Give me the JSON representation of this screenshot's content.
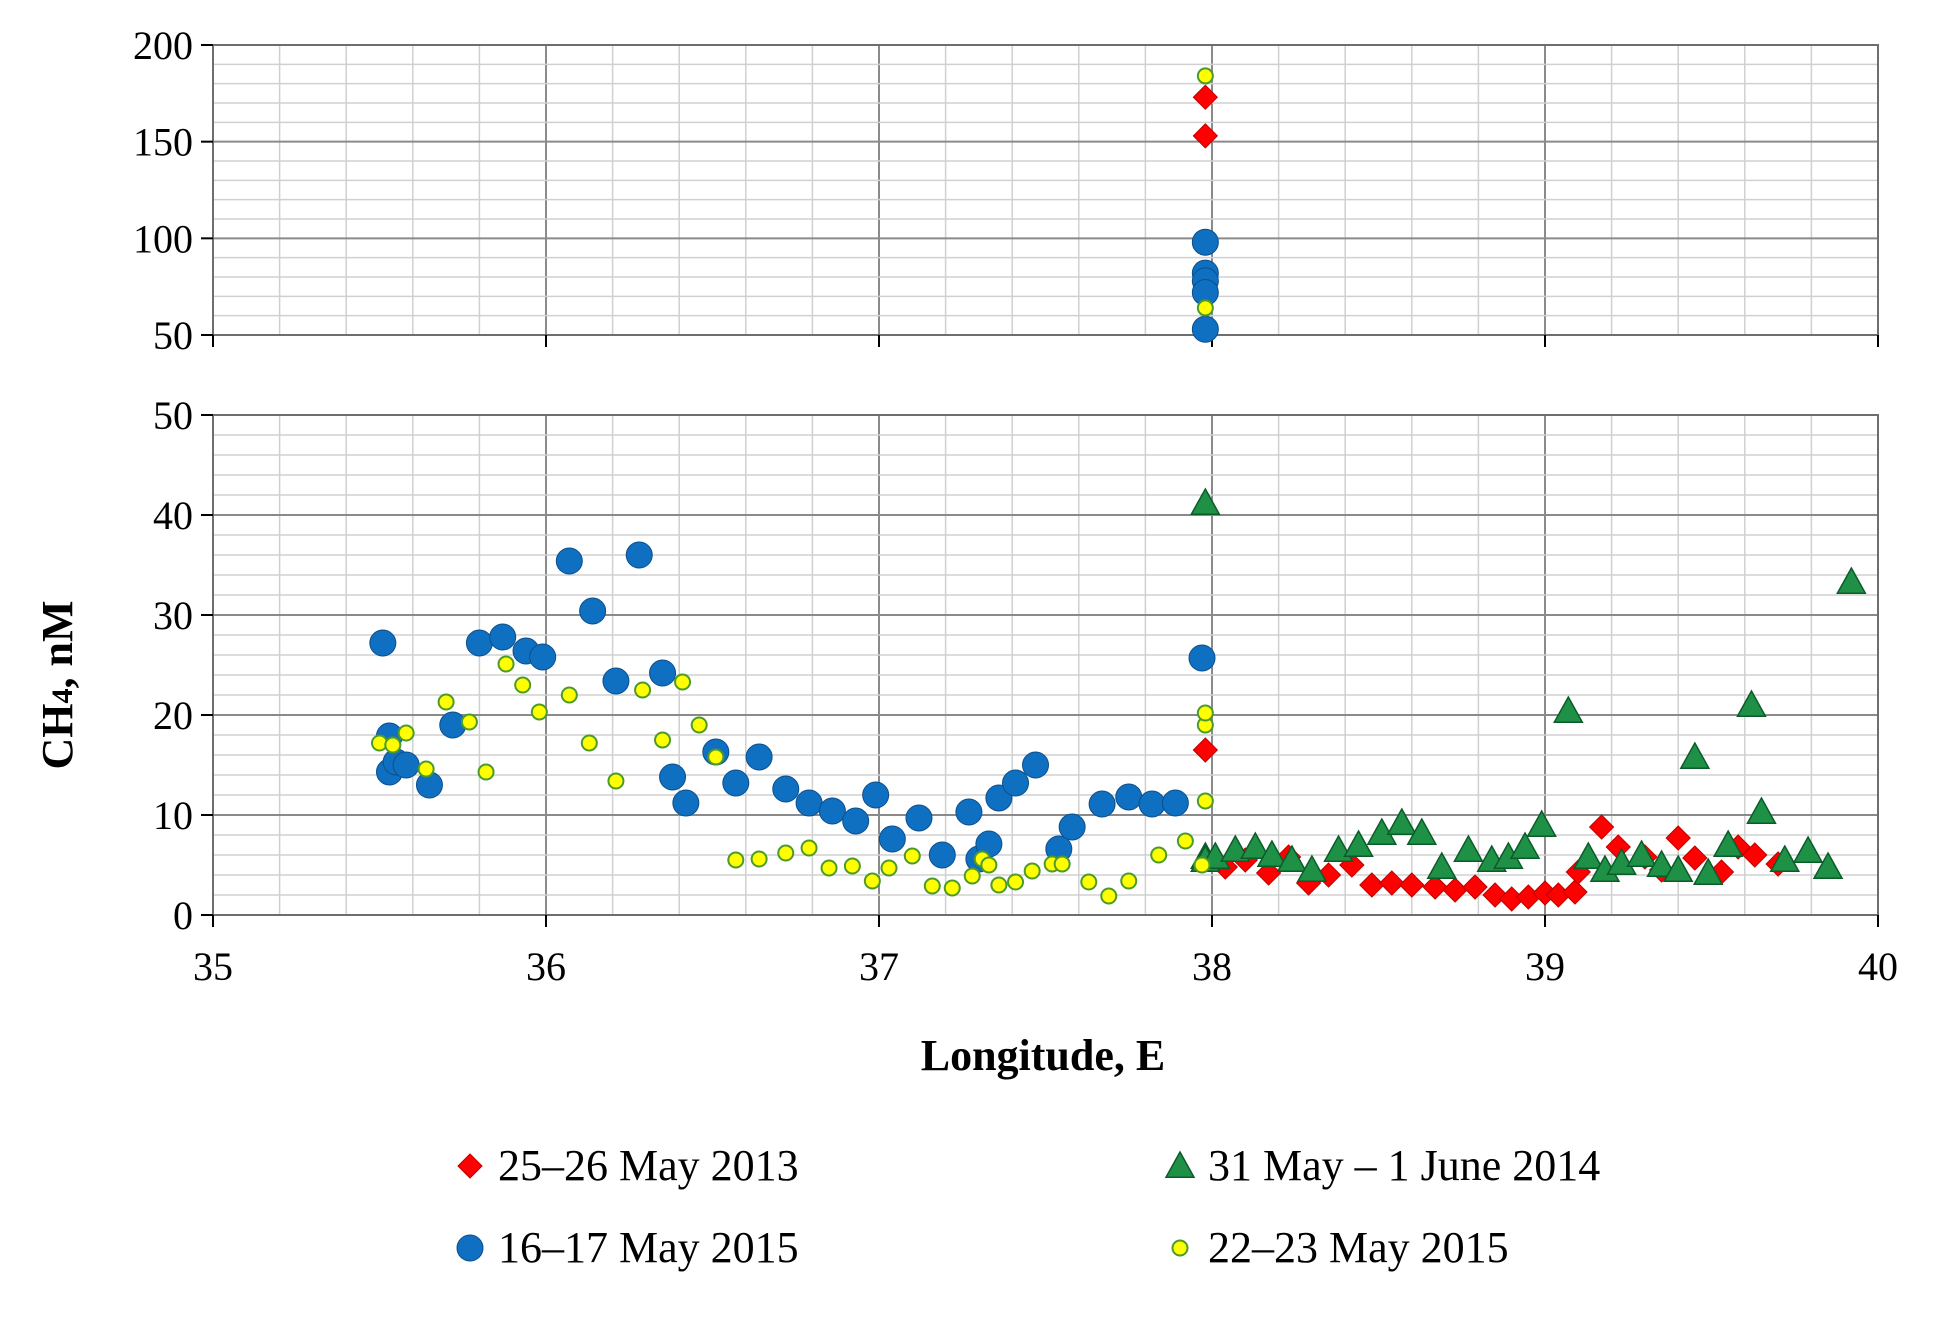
{
  "chart_data": {
    "type": "scatter",
    "title": "",
    "xlabel": "Longitude, E",
    "ylabel": "CH4, nM",
    "xlim": [
      35,
      40
    ],
    "x_ticks": [
      "35",
      "36",
      "37",
      "38",
      "39",
      "40"
    ],
    "broken_y_axis": true,
    "panels": [
      {
        "name": "upper",
        "ylim": [
          50,
          200
        ],
        "y_ticks": [
          "50",
          "100",
          "150",
          "200"
        ]
      },
      {
        "name": "lower",
        "ylim": [
          0,
          50
        ],
        "y_ticks": [
          "0",
          "10",
          "20",
          "30",
          "40",
          "50"
        ]
      }
    ],
    "grid": true,
    "legend_position": "bottom",
    "series": [
      {
        "name": "25–26 May 2013",
        "marker": "diamond",
        "color": "#ff0000",
        "x": [
          37.98,
          37.98,
          37.98,
          38.04,
          38.1,
          38.17,
          38.23,
          38.29,
          38.35,
          38.42,
          38.48,
          38.54,
          38.6,
          38.67,
          38.73,
          38.79,
          38.85,
          38.9,
          38.95,
          39.0,
          39.04,
          39.09,
          39.1,
          39.17,
          39.22,
          39.3,
          39.35,
          39.4,
          39.45,
          39.53,
          39.58,
          39.63,
          39.7
        ],
        "y": [
          173,
          153,
          16.5,
          4.8,
          5.5,
          4.2,
          5.8,
          3.2,
          4.0,
          5.0,
          3.0,
          3.2,
          3.0,
          2.8,
          2.5,
          2.8,
          2.0,
          1.6,
          1.8,
          2.2,
          2.0,
          2.3,
          4.3,
          8.8,
          6.8,
          5.8,
          4.5,
          7.7,
          5.7,
          4.3,
          6.8,
          6.0,
          5.1
        ]
      },
      {
        "name": "31 May – 1 June 2014",
        "marker": "triangle",
        "color": "#1e9146",
        "x": [
          37.98,
          37.98,
          37.98,
          38.01,
          38.07,
          38.13,
          38.18,
          38.24,
          38.3,
          38.38,
          38.44,
          38.51,
          38.57,
          38.63,
          38.69,
          38.77,
          38.84,
          38.89,
          38.94,
          38.99,
          39.07,
          39.13,
          39.18,
          39.23,
          39.29,
          39.35,
          39.4,
          39.45,
          39.49,
          39.55,
          39.62,
          39.65,
          39.72,
          39.79,
          39.85,
          39.92
        ],
        "y": [
          5.8,
          5.5,
          41.2,
          5.8,
          6.5,
          6.8,
          6.0,
          5.5,
          4.5,
          6.5,
          7.0,
          8.2,
          9.2,
          8.2,
          4.8,
          6.5,
          5.5,
          5.8,
          6.8,
          9.0,
          20.4,
          5.8,
          4.5,
          5.2,
          6.0,
          5.0,
          4.5,
          15.8,
          4.2,
          7.0,
          21.0,
          10.3,
          5.5,
          6.4,
          4.8,
          33.3
        ]
      },
      {
        "name": "16–17 May 2015",
        "marker": "circle",
        "color": "#0f6fc0",
        "x": [
          35.51,
          35.53,
          35.53,
          35.55,
          35.58,
          35.65,
          35.72,
          35.8,
          35.87,
          35.94,
          35.99,
          36.07,
          36.14,
          36.21,
          36.28,
          36.35,
          36.38,
          36.42,
          36.51,
          36.57,
          36.64,
          36.72,
          36.79,
          36.86,
          36.93,
          36.99,
          37.04,
          37.12,
          37.19,
          37.27,
          37.3,
          37.33,
          37.36,
          37.41,
          37.47,
          37.54,
          37.58,
          37.67,
          37.75,
          37.82,
          37.89,
          37.97,
          37.98,
          37.98,
          37.98,
          37.98,
          37.98
        ],
        "y": [
          27.2,
          17.9,
          14.3,
          15.3,
          15.0,
          13.0,
          19.0,
          27.2,
          27.8,
          26.4,
          25.8,
          35.4,
          30.4,
          23.4,
          36.0,
          24.2,
          13.8,
          11.2,
          16.3,
          13.2,
          15.8,
          12.6,
          11.2,
          10.4,
          9.4,
          12.0,
          7.6,
          9.7,
          6.0,
          10.3,
          5.6,
          7.1,
          11.7,
          13.2,
          15.0,
          6.6,
          8.8,
          11.1,
          11.8,
          11.1,
          11.2,
          25.7,
          98,
          82,
          78,
          72,
          53
        ]
      },
      {
        "name": "22–23 May 2015",
        "marker": "circle-small",
        "color": "#ffff00",
        "x": [
          35.5,
          35.54,
          35.58,
          35.64,
          35.7,
          35.77,
          35.82,
          35.88,
          35.93,
          35.98,
          36.07,
          36.13,
          36.21,
          36.29,
          36.35,
          36.41,
          36.46,
          36.51,
          36.57,
          36.64,
          36.72,
          36.79,
          36.85,
          36.92,
          36.98,
          37.03,
          37.1,
          37.16,
          37.22,
          37.28,
          37.31,
          37.33,
          37.36,
          37.41,
          37.46,
          37.52,
          37.55,
          37.63,
          37.69,
          37.75,
          37.84,
          37.92,
          37.97,
          37.98,
          37.98,
          37.98,
          37.98,
          37.98
        ],
        "y": [
          17.2,
          17.0,
          18.2,
          14.6,
          21.3,
          19.3,
          14.3,
          25.1,
          23.0,
          20.3,
          22.0,
          17.2,
          13.4,
          22.5,
          17.5,
          23.3,
          19.0,
          15.8,
          5.5,
          5.6,
          6.2,
          6.7,
          4.7,
          4.9,
          3.4,
          4.7,
          5.9,
          2.9,
          2.7,
          3.9,
          5.6,
          5.0,
          3.0,
          3.3,
          4.4,
          5.1,
          5.1,
          3.3,
          1.9,
          3.4,
          6.0,
          7.4,
          5.0,
          11.4,
          19.0,
          20.2,
          184,
          64
        ]
      }
    ]
  }
}
